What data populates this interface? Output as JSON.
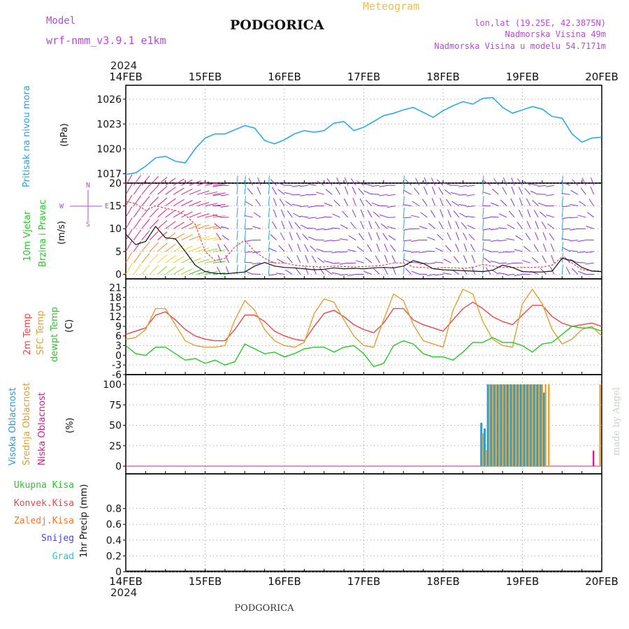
{
  "header": {
    "model_label": "Model",
    "model_name": "wrf-nmm_v3.9.1 e1km",
    "station": "PODGORICA",
    "product": "Meteogram",
    "coords": "lon,lat (19.25E, 42.3875N)",
    "elevation": "Nadmorska Visina 49m",
    "model_elevation": "Nadmorska Visina u modelu 54.7171m",
    "year": "2024",
    "footer_station": "PODGORICA",
    "credit": "made by Angel"
  },
  "colors": {
    "pressure": "#1ea8e8",
    "wind_left": "#22cc22",
    "temp2m": "#ee4444",
    "sfc": "#e0a030",
    "dewpt": "#22cc22",
    "cloud_high": "#1e9fe0",
    "cloud_mid": "#e8a030",
    "cloud_low": "#d0208a",
    "precip_total": "#22cc22",
    "precip_conv": "#ee4444",
    "precip_frz": "#f07830",
    "precip_snow": "#4444ee",
    "precip_hail": "#22cccc",
    "wind_barb": "#8833dd",
    "gust": "#ee4444"
  },
  "chart_data": [
    {
      "type": "line",
      "panel": "pressure",
      "ylabel": [
        "Pritisak na nivou mora",
        "(hPa)"
      ],
      "x_ticks": [
        "14FEB",
        "15FEB",
        "16FEB",
        "17FEB",
        "18FEB",
        "19FEB",
        "20FEB"
      ],
      "yticks": [
        1017,
        1020,
        1023,
        1026
      ],
      "ylim": [
        1016.7,
        1027
      ],
      "x_hours": [
        0,
        3,
        6,
        9,
        12,
        15,
        18,
        21,
        24,
        27,
        30,
        33,
        36,
        39,
        42,
        45,
        48,
        51,
        54,
        57,
        60,
        63,
        66,
        69,
        72,
        75,
        78,
        81,
        84,
        87,
        90,
        93,
        96,
        99,
        102,
        105,
        108,
        111,
        114,
        117,
        120,
        123,
        126,
        129,
        132,
        135,
        138,
        141,
        144
      ],
      "series": [
        {
          "name": "Pritisak na nivou mora",
          "values": [
            1016.9,
            1017.1,
            1017.9,
            1018.9,
            1019.1,
            1018.5,
            1018.3,
            1020.0,
            1021.3,
            1021.8,
            1021.8,
            1022.3,
            1022.8,
            1022.5,
            1021.0,
            1020.6,
            1021.1,
            1021.8,
            1022.2,
            1022.0,
            1022.2,
            1023.1,
            1023.3,
            1022.2,
            1022.6,
            1023.3,
            1024.0,
            1024.3,
            1024.7,
            1025.0,
            1024.4,
            1023.8,
            1024.6,
            1025.2,
            1025.7,
            1025.4,
            1026.1,
            1026.2,
            1025.0,
            1024.3,
            1024.7,
            1025.1,
            1024.8,
            1023.9,
            1023.7,
            1021.8,
            1020.8,
            1021.3,
            1021.4
          ]
        }
      ]
    },
    {
      "type": "line",
      "panel": "wind",
      "ylabel": [
        "10m Vjetar",
        "Brzina i Pravac",
        "(m/s)"
      ],
      "compass": [
        "N",
        "W",
        "E",
        "S"
      ],
      "yticks": [
        0,
        5,
        10,
        15,
        20
      ],
      "ylim": [
        -1,
        20
      ],
      "x_hours": [
        0,
        3,
        6,
        9,
        12,
        15,
        18,
        21,
        24,
        27,
        30,
        33,
        36,
        39,
        42,
        45,
        48,
        51,
        54,
        57,
        60,
        63,
        66,
        69,
        72,
        75,
        78,
        81,
        84,
        87,
        90,
        93,
        96,
        99,
        102,
        105,
        108,
        111,
        114,
        117,
        120,
        123,
        126,
        129,
        132,
        135,
        138,
        141,
        144
      ],
      "series": [
        {
          "name": "speed",
          "values": [
            8.8,
            6.5,
            7.2,
            10.5,
            8.0,
            7.8,
            5.0,
            2.0,
            0.6,
            0.2,
            0.1,
            0.3,
            0.5,
            1.8,
            2.6,
            1.8,
            1.5,
            1.4,
            1.2,
            1.0,
            1.1,
            1.4,
            1.2,
            1.3,
            1.2,
            1.4,
            1.5,
            1.4,
            1.8,
            3.0,
            2.4,
            1.2,
            1.0,
            0.9,
            0.8,
            0.7,
            0.6,
            0.9,
            2.0,
            1.5,
            0.6,
            0.5,
            0.5,
            0.7,
            3.5,
            3.0,
            1.5,
            0.7,
            0.6
          ]
        },
        {
          "name": "gust",
          "values": [
            16.0,
            15.5,
            14.0,
            15.0,
            14.5,
            14.0,
            13.0,
            11.0,
            5.0,
            3.0,
            3.5,
            6.0,
            7.5,
            5.0,
            3.5,
            2.5,
            2.5,
            2.0,
            1.8,
            1.7,
            1.6,
            1.8,
            1.7,
            1.6,
            1.7,
            1.8,
            2.0,
            2.5,
            2.5,
            1.6,
            1.5,
            1.3,
            1.5,
            1.4,
            1.3,
            1.5,
            2.2,
            1.8,
            1.5,
            1.5,
            1.5,
            1.5,
            1.6,
            2.0,
            3.8,
            2.5,
            1.0,
            0.8,
            0.7
          ]
        }
      ]
    },
    {
      "type": "line",
      "panel": "temperature",
      "ylabel": [
        "2m Temp",
        "SFC Temp",
        "dewpt Temp",
        "(C)"
      ],
      "yticks": [
        -6,
        -3,
        0,
        3,
        6,
        9,
        12,
        15,
        18,
        21
      ],
      "ylim": [
        -6,
        22
      ],
      "x_hours": [
        0,
        3,
        6,
        9,
        12,
        15,
        18,
        21,
        24,
        27,
        30,
        33,
        36,
        39,
        42,
        45,
        48,
        51,
        54,
        57,
        60,
        63,
        66,
        69,
        72,
        75,
        78,
        81,
        84,
        87,
        90,
        93,
        96,
        99,
        102,
        105,
        108,
        111,
        114,
        117,
        120,
        123,
        126,
        129,
        132,
        135,
        138,
        141,
        144
      ],
      "series": [
        {
          "name": "2m Temp",
          "values": [
            6.5,
            7.5,
            8.5,
            12.5,
            13.5,
            11.0,
            8.0,
            6.0,
            5.0,
            4.5,
            4.5,
            8.0,
            12.5,
            12.5,
            10.5,
            7.5,
            6.0,
            5.0,
            4.5,
            9.0,
            13.0,
            14.0,
            12.0,
            9.5,
            8.0,
            7.0,
            10.0,
            14.5,
            14.5,
            11.0,
            9.5,
            8.5,
            7.5,
            11.0,
            14.5,
            16.5,
            14.5,
            12.0,
            10.5,
            9.5,
            12.5,
            15.5,
            15.5,
            12.0,
            10.0,
            9.0,
            9.5,
            10.0,
            9.0
          ]
        },
        {
          "name": "SFC Temp",
          "values": [
            5.0,
            5.5,
            8.0,
            14.5,
            14.5,
            9.5,
            4.5,
            3.0,
            2.5,
            2.5,
            3.0,
            11.0,
            17.0,
            14.0,
            8.0,
            4.5,
            3.0,
            2.5,
            4.0,
            13.0,
            17.5,
            16.5,
            11.0,
            6.0,
            3.0,
            2.5,
            11.0,
            19.0,
            17.0,
            9.5,
            4.5,
            3.5,
            2.5,
            14.0,
            20.5,
            19.0,
            10.5,
            5.0,
            3.0,
            2.5,
            16.0,
            20.5,
            16.0,
            8.0,
            3.5,
            5.0,
            8.0,
            9.0,
            6.0
          ]
        },
        {
          "name": "dewpt Temp",
          "values": [
            3.0,
            0.5,
            0.0,
            2.5,
            2.5,
            0.5,
            -1.5,
            -1.0,
            -2.5,
            -1.5,
            -3.0,
            -2.0,
            3.5,
            2.0,
            0.5,
            1.0,
            -0.5,
            0.5,
            2.0,
            2.5,
            2.5,
            1.0,
            2.5,
            3.0,
            0.5,
            -3.5,
            -2.5,
            3.0,
            4.5,
            3.5,
            0.5,
            -0.5,
            -0.5,
            -1.5,
            1.0,
            4.0,
            4.0,
            5.5,
            4.0,
            4.0,
            3.0,
            1.0,
            3.5,
            4.0,
            6.5,
            9.0,
            8.5,
            8.5,
            7.5
          ]
        }
      ]
    },
    {
      "type": "bar",
      "panel": "clouds",
      "ylabel": [
        "Visoka Oblacnost",
        "Srednja Oblacnost",
        "Niska Oblacnost",
        "(%)"
      ],
      "yticks": [
        0,
        25,
        50,
        75,
        100
      ],
      "ylim": [
        0,
        100
      ],
      "series": [
        {
          "name": "Visoka Oblacnost",
          "x_hours": [
            107.5,
            108.5,
            109.5,
            110.5,
            111.5,
            112.5,
            113.5,
            114.5,
            115.5,
            116.5,
            117.5,
            118.5,
            119.5,
            120.5,
            121.5,
            122.5,
            123.5,
            124.5,
            125.5,
            126.5
          ],
          "values": [
            53,
            46,
            100,
            100,
            100,
            100,
            100,
            100,
            100,
            100,
            100,
            100,
            100,
            100,
            100,
            100,
            100,
            100,
            100,
            90
          ]
        },
        {
          "name": "Srednja Oblacnost",
          "x_hours": [
            108,
            109,
            110,
            111,
            112,
            113,
            114,
            115,
            116,
            117,
            118,
            119,
            120,
            121,
            122,
            123,
            124,
            125,
            126,
            127,
            128,
            143.5
          ],
          "values": [
            40,
            20,
            100,
            100,
            100,
            100,
            100,
            100,
            100,
            100,
            100,
            100,
            100,
            100,
            100,
            100,
            100,
            100,
            100,
            100,
            100,
            100
          ]
        },
        {
          "name": "Niska Oblacnost",
          "x_hours": [
            141.5
          ],
          "values": [
            19
          ]
        }
      ]
    },
    {
      "type": "line",
      "panel": "precipitation",
      "ylabel": [
        "1hr Precip (mm)"
      ],
      "yticks": [
        0,
        0.2,
        0.4,
        0.6,
        0.8
      ],
      "ylim": [
        0,
        1.0
      ],
      "series": [
        {
          "name": "Ukupna Kisa",
          "values": []
        },
        {
          "name": "Konvek.Kisa",
          "values": []
        },
        {
          "name": "Zaledj.Kisa",
          "values": []
        },
        {
          "name": "Snijeg",
          "values": []
        },
        {
          "name": "Grad",
          "values": []
        }
      ]
    }
  ]
}
